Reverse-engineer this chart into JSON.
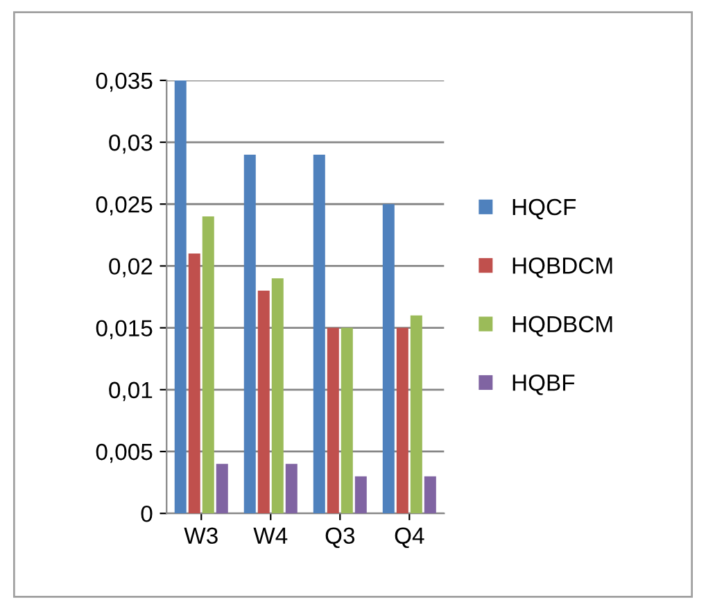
{
  "chart_data": {
    "type": "bar",
    "categories": [
      "W3",
      "W4",
      "Q3",
      "Q4"
    ],
    "series": [
      {
        "name": "HQCF",
        "color": "#4f81bd",
        "values": [
          0.035,
          0.029,
          0.029,
          0.025
        ]
      },
      {
        "name": "HQBDCM",
        "color": "#c0504d",
        "values": [
          0.021,
          0.018,
          0.015,
          0.015
        ]
      },
      {
        "name": "HQDBCM",
        "color": "#9bbb59",
        "values": [
          0.024,
          0.019,
          0.015,
          0.016
        ]
      },
      {
        "name": "HQBF",
        "color": "#8064a2",
        "values": [
          0.004,
          0.004,
          0.003,
          0.003
        ]
      }
    ],
    "ylim": [
      0,
      0.035
    ],
    "yticks": [
      0,
      {
        "value": 0.005,
        "label": "0,005"
      },
      {
        "value": 0.01,
        "label": "0,01"
      },
      {
        "value": 0.015,
        "label": "0,015"
      },
      {
        "value": 0.02,
        "label": "0,02"
      },
      {
        "value": 0.025,
        "label": "0,025"
      },
      {
        "value": 0.03,
        "label": "0,03"
      },
      {
        "value": 0.035,
        "label": "0,035"
      }
    ],
    "grid": "y",
    "legend": "right"
  }
}
